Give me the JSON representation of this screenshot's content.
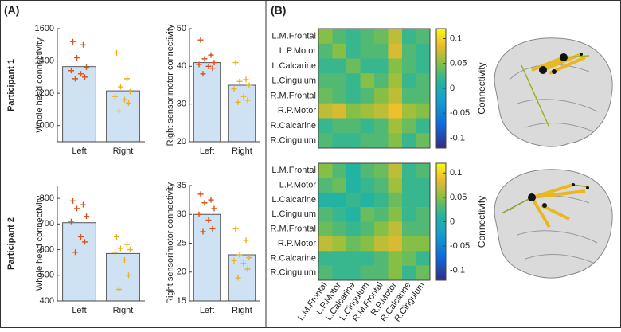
{
  "panels": [
    "(A)",
    "(B)"
  ],
  "rows": [
    "Participant 1",
    "Participant 2"
  ],
  "chart_data": [
    {
      "type": "bar",
      "ylabel": "Whole head connectivity",
      "categories": [
        "Left",
        "Right"
      ],
      "values": [
        1365,
        1215
      ],
      "color": "#cfe2f3",
      "points": {
        "colors": [
          "#d95319",
          "#edb120"
        ],
        "values": [
          [
            1520,
            1500,
            1420,
            1360,
            1340,
            1320,
            1300,
            1290
          ],
          [
            1450,
            1290,
            1240,
            1210,
            1180,
            1160,
            1140,
            1090
          ]
        ]
      },
      "ylim": [
        900,
        1600
      ],
      "yticks": [
        1000,
        1200,
        1400,
        1600
      ]
    },
    {
      "type": "bar",
      "ylabel": "Right sensorimotor connectivity",
      "categories": [
        "Left",
        "Right"
      ],
      "values": [
        41,
        35
      ],
      "color": "#cfe2f3",
      "points": {
        "colors": [
          "#d95319",
          "#edb120"
        ],
        "values": [
          [
            47,
            43,
            42,
            41,
            40.5,
            40,
            39.5,
            38
          ],
          [
            41,
            36.5,
            36,
            35,
            34,
            32,
            31,
            30.5
          ]
        ]
      },
      "ylim": [
        20,
        50
      ],
      "yticks": [
        20,
        30,
        40,
        50
      ]
    },
    {
      "type": "bar",
      "ylabel": "Whole head connectivity",
      "categories": [
        "Left",
        "Right"
      ],
      "values": [
        705,
        585
      ],
      "color": "#cfe2f3",
      "points": {
        "colors": [
          "#d95319",
          "#edb120"
        ],
        "values": [
          [
            790,
            775,
            760,
            730,
            710,
            650,
            630,
            590
          ],
          [
            650,
            620,
            605,
            600,
            590,
            560,
            500,
            445
          ]
        ]
      },
      "ylim": [
        400,
        850
      ],
      "yticks": [
        400,
        500,
        600,
        700,
        800
      ]
    },
    {
      "type": "bar",
      "ylabel": "Right sensorimotor connectivity",
      "categories": [
        "Left",
        "Right"
      ],
      "values": [
        30,
        23
      ],
      "color": "#cfe2f3",
      "points": {
        "colors": [
          "#d95319",
          "#edb120"
        ],
        "values": [
          [
            33.5,
            32.5,
            32,
            31,
            30,
            29,
            27.5,
            27
          ],
          [
            27.5,
            25.5,
            23,
            22.5,
            22,
            21.5,
            20.5,
            19
          ]
        ]
      },
      "ylim": [
        15,
        35
      ],
      "yticks": [
        15,
        20,
        25,
        30,
        35
      ]
    },
    {
      "type": "heatmap",
      "ylabels": [
        "L.M.Frontal",
        "L.P.Motor",
        "L.Calcarine",
        "L.Cingulum",
        "R.M.Frontal",
        "R.P.Motor",
        "R.Calcarine",
        "R.Cingulum"
      ],
      "values": [
        [
          0.05,
          0.03,
          0.02,
          0.03,
          0.04,
          0.07,
          0.02,
          0.03
        ],
        [
          0.03,
          0.05,
          0.02,
          0.03,
          0.03,
          0.08,
          0.03,
          0.02
        ],
        [
          0.02,
          0.02,
          0.04,
          0.02,
          0.02,
          0.05,
          0.03,
          0.02
        ],
        [
          0.03,
          0.03,
          0.02,
          0.05,
          0.03,
          0.06,
          0.02,
          0.03
        ],
        [
          0.04,
          0.03,
          0.02,
          0.03,
          0.05,
          0.07,
          0.03,
          0.03
        ],
        [
          0.07,
          0.08,
          0.05,
          0.06,
          0.07,
          0.09,
          0.06,
          0.05
        ],
        [
          0.02,
          0.03,
          0.03,
          0.02,
          0.03,
          0.06,
          0.04,
          0.02
        ],
        [
          0.03,
          0.02,
          0.02,
          0.03,
          0.03,
          0.05,
          0.02,
          0.04
        ]
      ],
      "clim": [
        -0.12,
        0.12
      ],
      "cticks": [
        -0.1,
        -0.05,
        0,
        0.05,
        0.1
      ],
      "clabel": "Connectivity"
    },
    {
      "type": "heatmap",
      "ylabels": [
        "L.M.Frontal",
        "L.P.Motor",
        "L.Calcarine",
        "L.Cingulum",
        "R.M.Frontal",
        "R.P.Motor",
        "R.Calcarine",
        "R.Cingulum"
      ],
      "xlabels": [
        "L.M.Frontal",
        "L.P.Motor",
        "L.Calcarine",
        "L.Cingulum",
        "R.M.Frontal",
        "R.P.Motor",
        "R.Calcarine",
        "R.Cingulum"
      ],
      "values": [
        [
          0.05,
          0.03,
          0.01,
          0.03,
          0.04,
          0.07,
          0.02,
          0.03
        ],
        [
          0.03,
          0.04,
          0.01,
          0.02,
          0.03,
          0.06,
          0.02,
          0.02
        ],
        [
          0.01,
          0.01,
          0.02,
          0.01,
          0.02,
          0.04,
          0.02,
          0.02
        ],
        [
          0.03,
          0.02,
          0.01,
          0.04,
          0.03,
          0.05,
          0.02,
          0.03
        ],
        [
          0.04,
          0.03,
          0.02,
          0.03,
          0.05,
          0.07,
          0.03,
          0.03
        ],
        [
          0.07,
          0.06,
          0.04,
          0.05,
          0.07,
          0.08,
          0.05,
          0.05
        ],
        [
          0.02,
          0.02,
          0.02,
          0.02,
          0.03,
          0.05,
          0.04,
          0.02
        ],
        [
          0.03,
          0.02,
          0.02,
          0.03,
          0.03,
          0.05,
          0.02,
          0.04
        ]
      ],
      "clim": [
        -0.12,
        0.12
      ],
      "cticks": [
        -0.1,
        -0.05,
        0,
        0.05,
        0.1
      ],
      "clabel": "Connectivity"
    }
  ]
}
